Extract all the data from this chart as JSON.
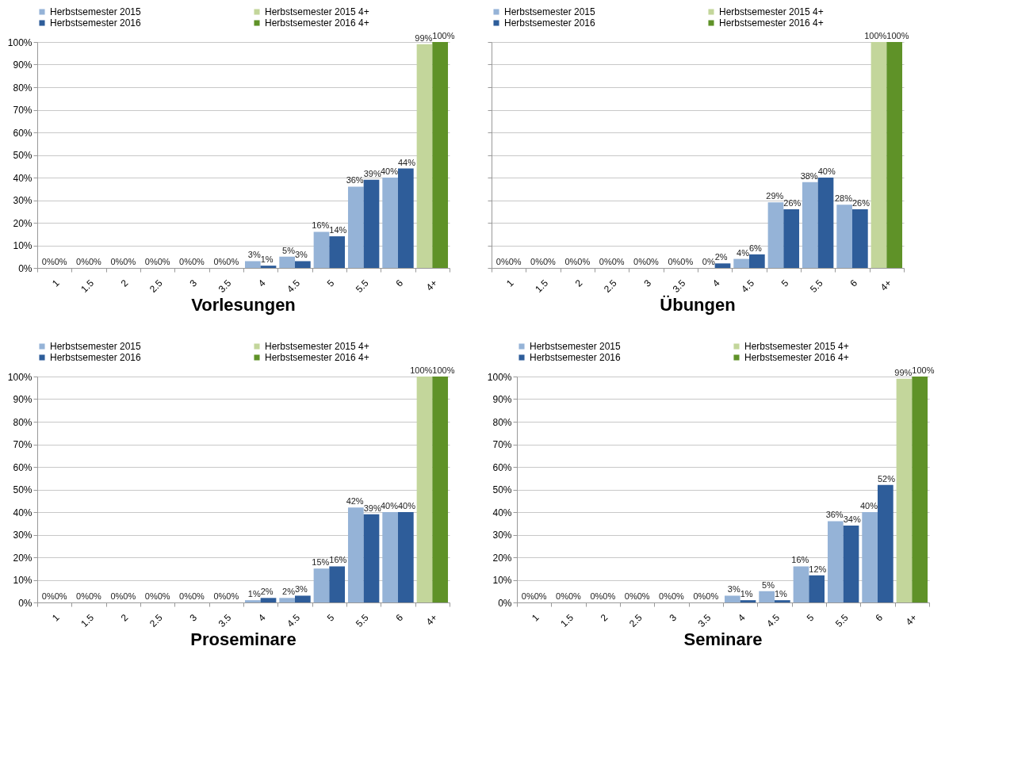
{
  "chart_data": [
    {
      "type": "bar",
      "title": "Vorlesungen",
      "categories": [
        "1",
        "1.5",
        "2",
        "2.5",
        "3",
        "3.5",
        "4",
        "4.5",
        "5",
        "5.5",
        "6",
        "4+"
      ],
      "ylim": [
        0,
        100
      ],
      "yticks": [
        {
          "value": 0,
          "label": "0%"
        },
        {
          "value": 10,
          "label": "10%"
        },
        {
          "value": 20,
          "label": "20%"
        },
        {
          "value": 30,
          "label": "30%"
        },
        {
          "value": 40,
          "label": "40%"
        },
        {
          "value": 50,
          "label": "50%"
        },
        {
          "value": 60,
          "label": "60%"
        },
        {
          "value": 70,
          "label": "70%"
        },
        {
          "value": 80,
          "label": "80%"
        },
        {
          "value": 90,
          "label": "90%"
        },
        {
          "value": 100,
          "label": "100%"
        }
      ],
      "grid": "y",
      "legend": "top",
      "series": [
        {
          "name": "Herbstsemester 2015",
          "color": "#95b3d7",
          "values": [
            0,
            0,
            0,
            0,
            0,
            0,
            3,
            5,
            16,
            36,
            40,
            null
          ],
          "value_labels": [
            "0%",
            "0%",
            "0%",
            "0%",
            "0%",
            "0%",
            "3%",
            "5%",
            "16%",
            "36%",
            "40%",
            null
          ]
        },
        {
          "name": "Herbstsemester 2016",
          "color": "#2e5d9a",
          "values": [
            0,
            0,
            0,
            0,
            0,
            0,
            1,
            3,
            14,
            39,
            44,
            null
          ],
          "value_labels": [
            "0%",
            "0%",
            "0%",
            "0%",
            "0%",
            "0%",
            "1%",
            "3%",
            "14%",
            "39%",
            "44%",
            null
          ]
        },
        {
          "name": "Herbstsemester 2015 4+",
          "color": "#c3d69b",
          "values": [
            null,
            null,
            null,
            null,
            null,
            null,
            null,
            null,
            null,
            null,
            null,
            99
          ],
          "value_labels": [
            null,
            null,
            null,
            null,
            null,
            null,
            null,
            null,
            null,
            null,
            null,
            "99%"
          ]
        },
        {
          "name": "Herbstsemester 2016 4+",
          "color": "#5f9228",
          "values": [
            null,
            null,
            null,
            null,
            null,
            null,
            null,
            null,
            null,
            null,
            null,
            100
          ],
          "value_labels": [
            null,
            null,
            null,
            null,
            null,
            null,
            null,
            null,
            null,
            null,
            null,
            "100%"
          ]
        }
      ]
    },
    {
      "type": "bar",
      "title": "Übungen",
      "categories": [
        "1",
        "1.5",
        "2",
        "2.5",
        "3",
        "3.5",
        "4",
        "4.5",
        "5",
        "5.5",
        "6",
        "4+"
      ],
      "ylim": [
        0,
        100
      ],
      "yticks": [
        0,
        10,
        20,
        30,
        40,
        50,
        60,
        70,
        80,
        90,
        100
      ],
      "tick_labels": "x",
      "grid": "y",
      "legend": "top",
      "series": [
        {
          "name": "Herbstsemester 2015",
          "color": "#95b3d7",
          "values": [
            0,
            0,
            0,
            0,
            0,
            0,
            0,
            4,
            29,
            38,
            28,
            null
          ],
          "value_labels": [
            "0%",
            "0%",
            "0%",
            "0%",
            "0%",
            "0%",
            "0%",
            "4%",
            "29%",
            "38%",
            "28%",
            null
          ]
        },
        {
          "name": "Herbstsemester 2016",
          "color": "#2e5d9a",
          "values": [
            0,
            0,
            0,
            0,
            0,
            0,
            2,
            6,
            26,
            40,
            26,
            null
          ],
          "value_labels": [
            "0%",
            "0%",
            "0%",
            "0%",
            "0%",
            "0%",
            "2%",
            "6%",
            "26%",
            "40%",
            "26%",
            null
          ]
        },
        {
          "name": "Herbstsemester 2015 4+",
          "color": "#c3d69b",
          "values": [
            null,
            null,
            null,
            null,
            null,
            null,
            null,
            null,
            null,
            null,
            null,
            100
          ],
          "value_labels": [
            null,
            null,
            null,
            null,
            null,
            null,
            null,
            null,
            null,
            null,
            null,
            "100%"
          ]
        },
        {
          "name": "Herbstsemester 2016 4+",
          "color": "#5f9228",
          "values": [
            null,
            null,
            null,
            null,
            null,
            null,
            null,
            null,
            null,
            null,
            null,
            100
          ],
          "value_labels": [
            null,
            null,
            null,
            null,
            null,
            null,
            null,
            null,
            null,
            null,
            null,
            "100%"
          ]
        }
      ]
    },
    {
      "type": "bar",
      "title": "Proseminare",
      "categories": [
        "1",
        "1.5",
        "2",
        "2.5",
        "3",
        "3.5",
        "4",
        "4.5",
        "5",
        "5.5",
        "6",
        "4+"
      ],
      "ylim": [
        0,
        100
      ],
      "yticks": [
        {
          "value": 0,
          "label": "0%"
        },
        {
          "value": 10,
          "label": "10%"
        },
        {
          "value": 20,
          "label": "20%"
        },
        {
          "value": 30,
          "label": "30%"
        },
        {
          "value": 40,
          "label": "40%"
        },
        {
          "value": 50,
          "label": "50%"
        },
        {
          "value": 60,
          "label": "60%"
        },
        {
          "value": 70,
          "label": "70%"
        },
        {
          "value": 80,
          "label": "80%"
        },
        {
          "value": 90,
          "label": "90%"
        },
        {
          "value": 100,
          "label": "100%"
        }
      ],
      "grid": "y",
      "legend": "top",
      "series": [
        {
          "name": "Herbstsemester 2015",
          "color": "#95b3d7",
          "values": [
            0,
            0,
            0,
            0,
            0,
            0,
            1,
            2,
            15,
            42,
            40,
            null
          ],
          "value_labels": [
            "0%",
            "0%",
            "0%",
            "0%",
            "0%",
            "0%",
            "1%",
            "2%",
            "15%",
            "42%",
            "40%",
            null
          ]
        },
        {
          "name": "Herbstsemester 2016",
          "color": "#2e5d9a",
          "values": [
            0,
            0,
            0,
            0,
            0,
            0,
            2,
            3,
            16,
            39,
            40,
            null
          ],
          "value_labels": [
            "0%",
            "0%",
            "0%",
            "0%",
            "0%",
            "0%",
            "2%",
            "3%",
            "16%",
            "39%",
            "40%",
            null
          ]
        },
        {
          "name": "Herbstsemester 2015 4+",
          "color": "#c3d69b",
          "values": [
            null,
            null,
            null,
            null,
            null,
            null,
            null,
            null,
            null,
            null,
            null,
            100
          ],
          "value_labels": [
            null,
            null,
            null,
            null,
            null,
            null,
            null,
            null,
            null,
            null,
            null,
            "100%"
          ]
        },
        {
          "name": "Herbstsemester 2016 4+",
          "color": "#5f9228",
          "values": [
            null,
            null,
            null,
            null,
            null,
            null,
            null,
            null,
            null,
            null,
            null,
            100
          ],
          "value_labels": [
            null,
            null,
            null,
            null,
            null,
            null,
            null,
            null,
            null,
            null,
            null,
            "100%"
          ]
        }
      ]
    },
    {
      "type": "bar",
      "title": "Seminare",
      "categories": [
        "1",
        "1.5",
        "2",
        "2.5",
        "3",
        "3.5",
        "4",
        "4.5",
        "5",
        "5.5",
        "6",
        "4+"
      ],
      "ylim": [
        0,
        100
      ],
      "yticks": [
        {
          "value": 0,
          "label": "0%"
        },
        {
          "value": 10,
          "label": "10%"
        },
        {
          "value": 20,
          "label": "20%"
        },
        {
          "value": 30,
          "label": "30%"
        },
        {
          "value": 40,
          "label": "40%"
        },
        {
          "value": 50,
          "label": "50%"
        },
        {
          "value": 60,
          "label": "60%"
        },
        {
          "value": 70,
          "label": "70%"
        },
        {
          "value": 80,
          "label": "80%"
        },
        {
          "value": 90,
          "label": "90%"
        },
        {
          "value": 100,
          "label": "100%"
        }
      ],
      "grid": "y",
      "legend": "top",
      "series": [
        {
          "name": "Herbstsemester 2015",
          "color": "#95b3d7",
          "values": [
            0,
            0,
            0,
            0,
            0,
            0,
            3,
            5,
            16,
            36,
            40,
            null
          ],
          "value_labels": [
            "0%",
            "0%",
            "0%",
            "0%",
            "0%",
            "0%",
            "3%",
            "5%",
            "16%",
            "36%",
            "40%",
            null
          ]
        },
        {
          "name": "Herbstsemester 2016",
          "color": "#2e5d9a",
          "values": [
            0,
            0,
            0,
            0,
            0,
            0,
            1,
            1,
            12,
            34,
            52,
            null
          ],
          "value_labels": [
            "0%",
            "0%",
            "0%",
            "0%",
            "0%",
            "0%",
            "1%",
            "1%",
            "12%",
            "34%",
            "52%",
            null
          ]
        },
        {
          "name": "Herbstsemester 2015 4+",
          "color": "#c3d69b",
          "values": [
            null,
            null,
            null,
            null,
            null,
            null,
            null,
            null,
            null,
            null,
            null,
            99
          ],
          "value_labels": [
            null,
            null,
            null,
            null,
            null,
            null,
            null,
            null,
            null,
            null,
            null,
            "99%"
          ]
        },
        {
          "name": "Herbstsemester 2016 4+",
          "color": "#5f9228",
          "values": [
            null,
            null,
            null,
            null,
            null,
            null,
            null,
            null,
            null,
            null,
            null,
            100
          ],
          "value_labels": [
            null,
            null,
            null,
            null,
            null,
            null,
            null,
            null,
            null,
            null,
            null,
            "100%"
          ]
        }
      ]
    }
  ]
}
